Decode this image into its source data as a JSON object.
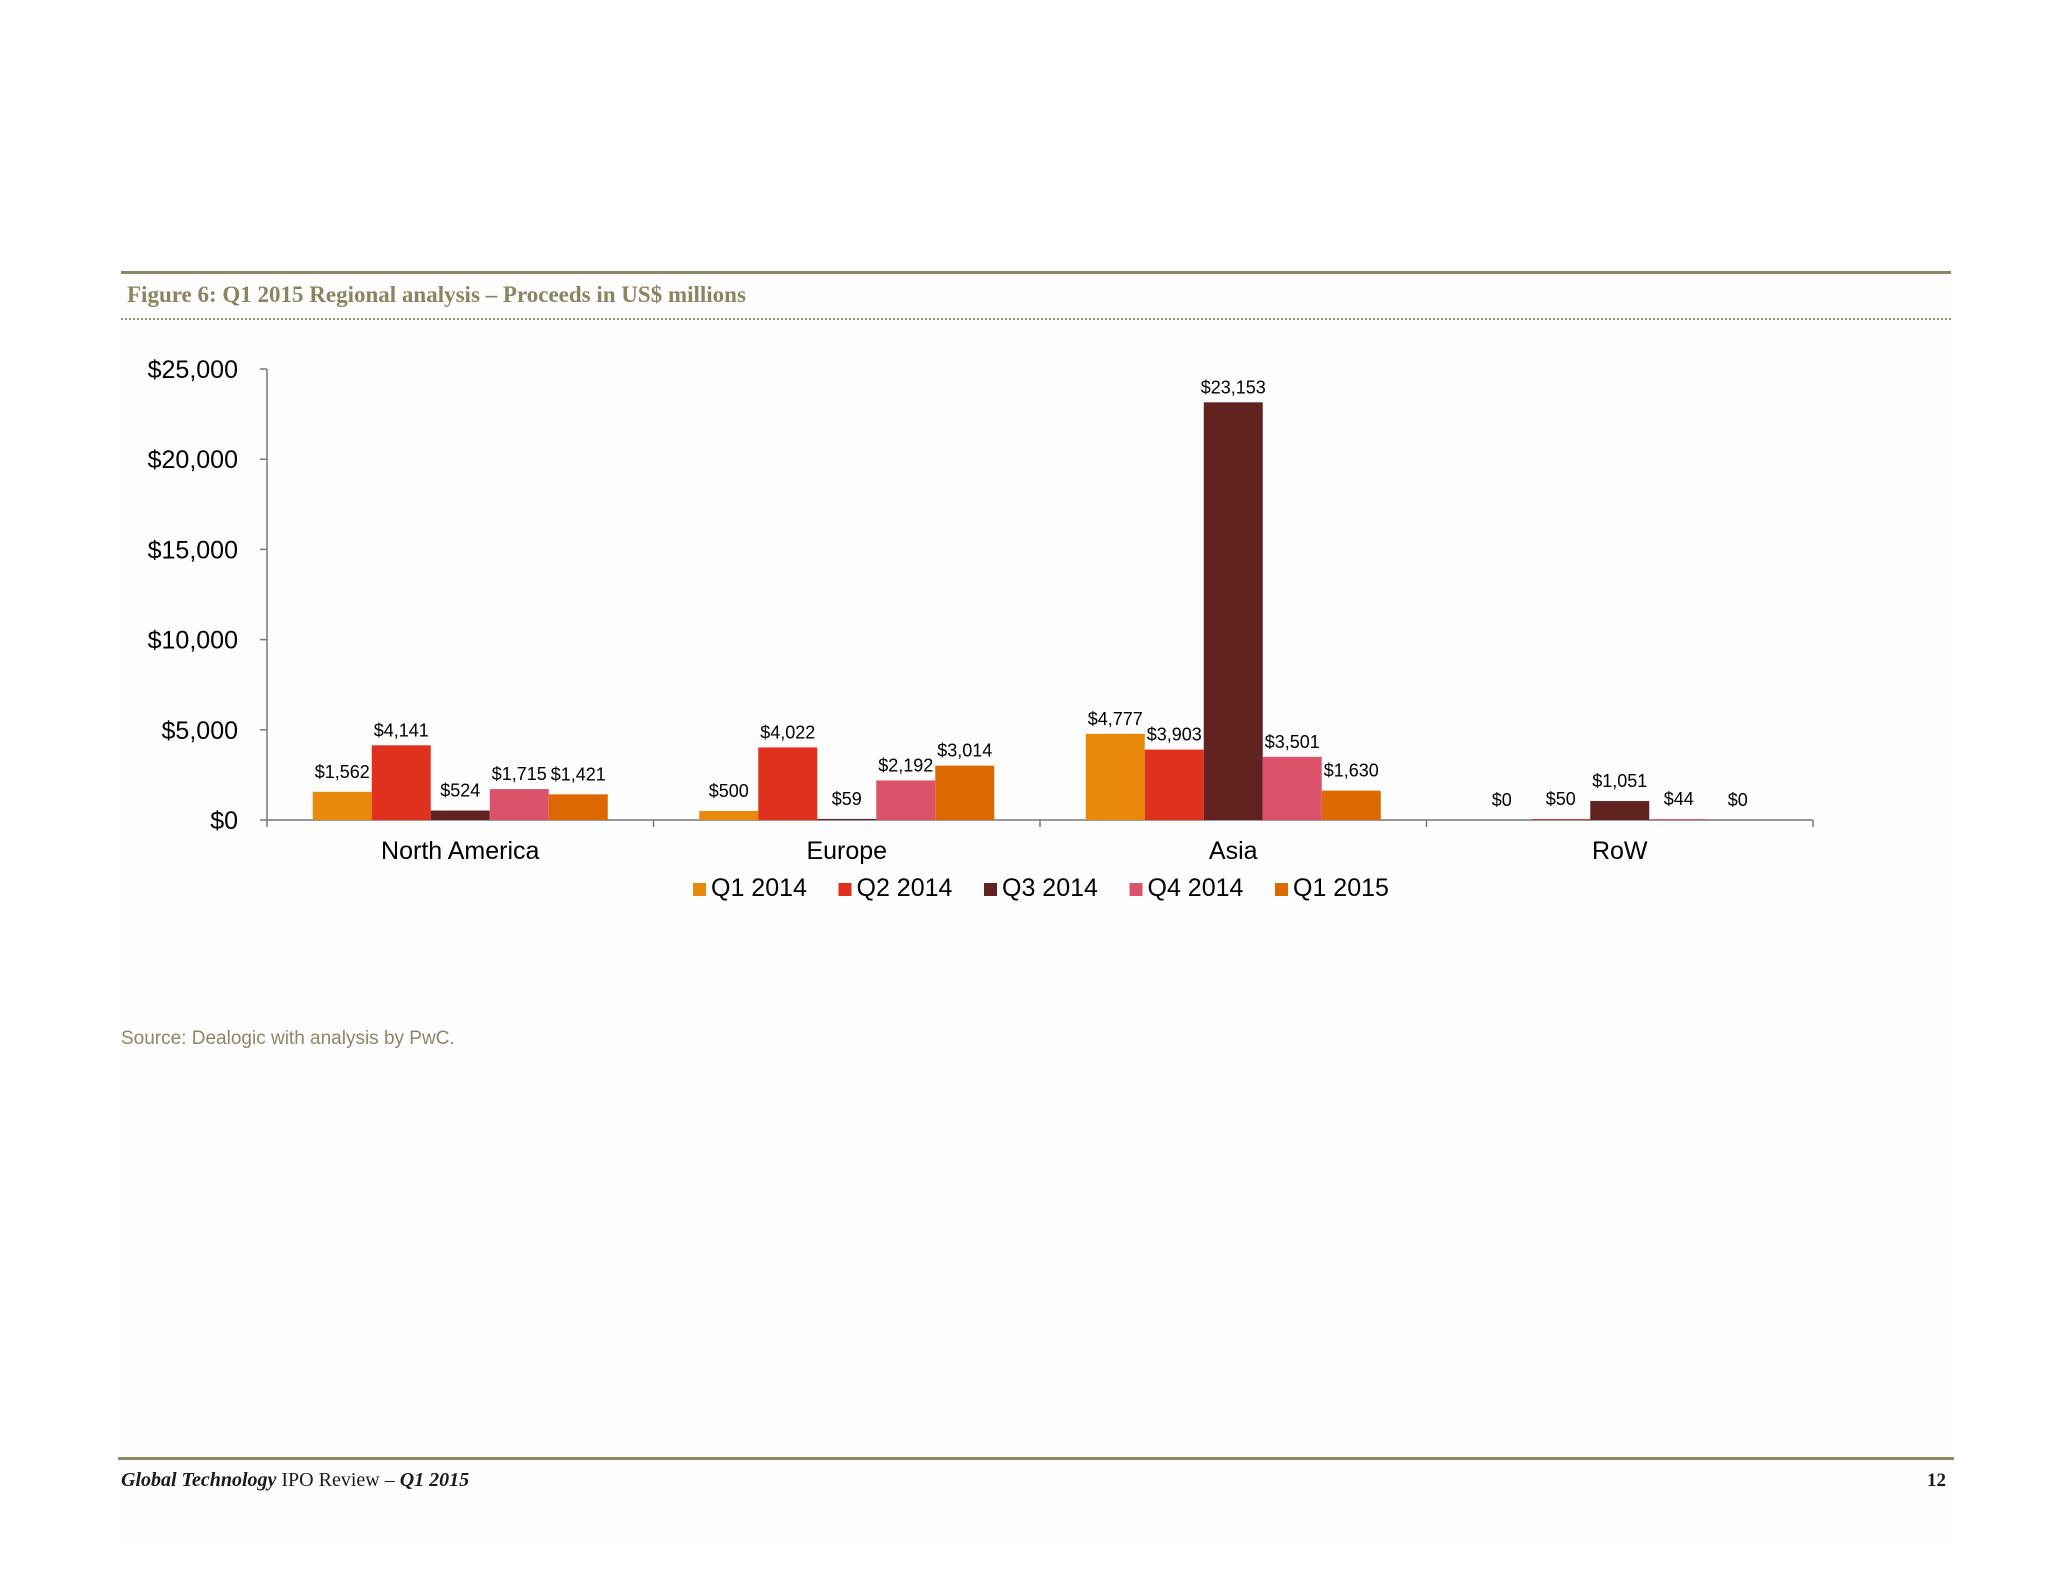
{
  "figure": {
    "title": "Figure 6: Q1 2015 Regional analysis – Proceeds in US$ millions",
    "source": "Source: Dealogic with analysis by PwC."
  },
  "footer": {
    "report_title_em": "Global Technology",
    "report_title_mid": " IPO Review – ",
    "report_period_em": "Q1 2015",
    "page_number": "12"
  },
  "colors": {
    "Q1 2014": "#e8890c",
    "Q2 2014": "#e0301e",
    "Q3 2014": "#602320",
    "Q4 2014": "#db536a",
    "Q1 2015": "#dc6900",
    "rule": "#8d8667"
  },
  "chart_data": {
    "type": "bar",
    "title": "Figure 6: Q1 2015 Regional analysis – Proceeds in US$ millions",
    "xlabel": "",
    "ylabel": "",
    "categories": [
      "North America",
      "Europe",
      "Asia",
      "RoW"
    ],
    "ylim": [
      0,
      25000
    ],
    "yticks": [
      0,
      5000,
      10000,
      15000,
      20000,
      25000
    ],
    "ytick_labels": [
      "$0",
      "$5,000",
      "$10,000",
      "$15,000",
      "$20,000",
      "$25,000"
    ],
    "grid": false,
    "legend_position": "bottom",
    "series": [
      {
        "name": "Q1 2014",
        "values": [
          1562,
          500,
          4777,
          0
        ],
        "labels": [
          "$1,562",
          "$500",
          "$4,777",
          "$0"
        ]
      },
      {
        "name": "Q2 2014",
        "values": [
          4141,
          4022,
          3903,
          50
        ],
        "labels": [
          "$4,141",
          "$4,022",
          "$3,903",
          "$50"
        ]
      },
      {
        "name": "Q3 2014",
        "values": [
          524,
          59,
          23153,
          1051
        ],
        "labels": [
          "$524",
          "$59",
          "$23,153",
          "$1,051"
        ]
      },
      {
        "name": "Q4 2014",
        "values": [
          1715,
          2192,
          3501,
          44
        ],
        "labels": [
          "$1,715",
          "$2,192",
          "$3,501",
          "$44"
        ]
      },
      {
        "name": "Q1 2015",
        "values": [
          1421,
          3014,
          1630,
          0
        ],
        "labels": [
          "$1,421",
          "$3,014",
          "$1,630",
          "$0"
        ]
      }
    ]
  }
}
